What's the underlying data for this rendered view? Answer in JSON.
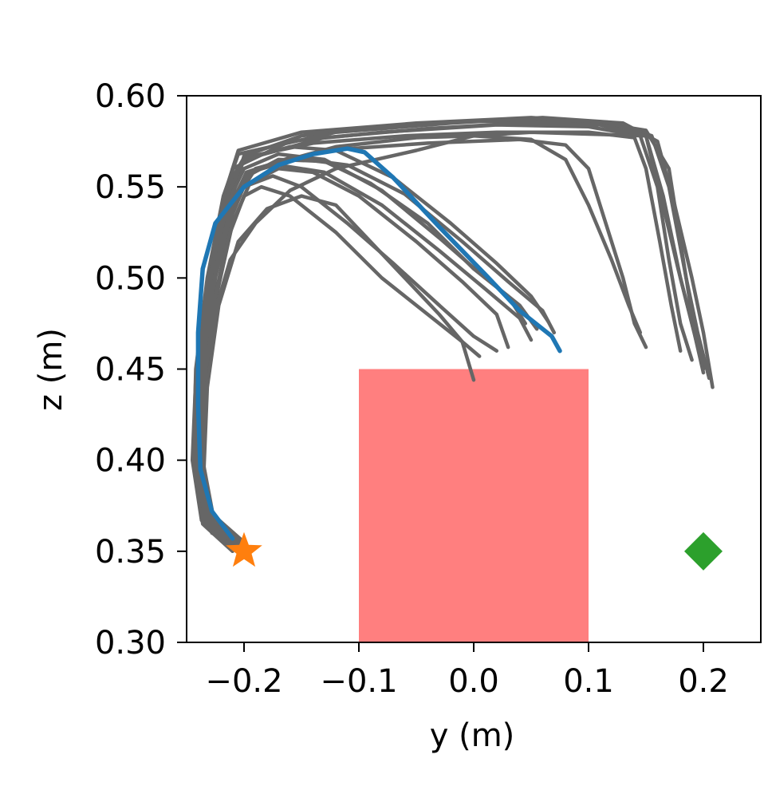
{
  "chart_data": {
    "type": "line",
    "title": "",
    "xlabel": "y (m)",
    "ylabel": "z (m)",
    "xlim": [
      -0.25,
      0.25
    ],
    "ylim": [
      0.3,
      0.6
    ],
    "xticks": [
      -0.2,
      -0.1,
      0.0,
      0.1,
      0.2
    ],
    "xtick_labels": [
      "−0.2",
      "−0.1",
      "0.0",
      "0.1",
      "0.2"
    ],
    "yticks": [
      0.3,
      0.35,
      0.4,
      0.45,
      0.5,
      0.55,
      0.6
    ],
    "ytick_labels": [
      "0.30",
      "0.35",
      "0.40",
      "0.45",
      "0.50",
      "0.55",
      "0.60"
    ],
    "grid": false,
    "obstacle": {
      "y": [
        -0.1,
        0.1
      ],
      "z": [
        0.3,
        0.45
      ],
      "color": "#ff7f7f"
    },
    "start_marker": {
      "y": -0.2,
      "z": 0.35,
      "shape": "star",
      "color": "#ff7f0e"
    },
    "goal_marker": {
      "y": 0.2,
      "z": 0.35,
      "shape": "diamond",
      "color": "#2ca02c"
    },
    "highlight_color": "#1f77b4",
    "sample_color": "#666666",
    "highlighted_trajectory": [
      [
        -0.21,
        0.357
      ],
      [
        -0.228,
        0.372
      ],
      [
        -0.238,
        0.395
      ],
      [
        -0.24,
        0.43
      ],
      [
        -0.24,
        0.47
      ],
      [
        -0.236,
        0.505
      ],
      [
        -0.225,
        0.53
      ],
      [
        -0.2,
        0.55
      ],
      [
        -0.17,
        0.562
      ],
      [
        -0.14,
        0.568
      ],
      [
        -0.11,
        0.571
      ],
      [
        -0.095,
        0.569
      ],
      [
        -0.07,
        0.555
      ],
      [
        -0.03,
        0.528
      ],
      [
        0.01,
        0.502
      ],
      [
        0.04,
        0.482
      ],
      [
        0.068,
        0.468
      ],
      [
        0.075,
        0.46
      ]
    ],
    "sample_trajectories": [
      [
        [
          -0.205,
          0.351
        ],
        [
          -0.23,
          0.362
        ],
        [
          -0.24,
          0.39
        ],
        [
          -0.236,
          0.44
        ],
        [
          -0.225,
          0.5
        ],
        [
          -0.21,
          0.545
        ],
        [
          -0.2,
          0.567
        ],
        [
          -0.15,
          0.578
        ],
        [
          -0.1,
          0.582
        ],
        [
          0,
          0.586
        ],
        [
          0.1,
          0.586
        ],
        [
          0.15,
          0.581
        ],
        [
          0.17,
          0.56
        ],
        [
          0.18,
          0.52
        ],
        [
          0.19,
          0.48
        ],
        [
          0.2,
          0.45
        ]
      ],
      [
        [
          -0.21,
          0.352
        ],
        [
          -0.235,
          0.37
        ],
        [
          -0.242,
          0.41
        ],
        [
          -0.238,
          0.46
        ],
        [
          -0.228,
          0.51
        ],
        [
          -0.215,
          0.55
        ],
        [
          -0.205,
          0.57
        ],
        [
          -0.15,
          0.58
        ],
        [
          -0.05,
          0.585
        ],
        [
          0.05,
          0.588
        ],
        [
          0.12,
          0.585
        ],
        [
          0.155,
          0.578
        ],
        [
          0.17,
          0.55
        ],
        [
          0.185,
          0.5
        ],
        [
          0.195,
          0.47
        ],
        [
          0.205,
          0.445
        ]
      ],
      [
        [
          -0.2,
          0.35
        ],
        [
          -0.225,
          0.36
        ],
        [
          -0.235,
          0.385
        ],
        [
          -0.238,
          0.43
        ],
        [
          -0.232,
          0.48
        ],
        [
          -0.22,
          0.53
        ],
        [
          -0.21,
          0.56
        ],
        [
          -0.16,
          0.575
        ],
        [
          -0.08,
          0.58
        ],
        [
          0.02,
          0.584
        ],
        [
          0.1,
          0.583
        ],
        [
          0.145,
          0.578
        ],
        [
          0.16,
          0.55
        ],
        [
          0.17,
          0.51
        ],
        [
          0.18,
          0.475
        ],
        [
          0.19,
          0.455
        ]
      ],
      [
        [
          -0.205,
          0.355
        ],
        [
          -0.232,
          0.368
        ],
        [
          -0.24,
          0.4
        ],
        [
          -0.238,
          0.45
        ],
        [
          -0.228,
          0.505
        ],
        [
          -0.215,
          0.55
        ],
        [
          -0.2,
          0.566
        ],
        [
          -0.14,
          0.574
        ],
        [
          -0.06,
          0.578
        ],
        [
          0.02,
          0.58
        ],
        [
          0.1,
          0.58
        ],
        [
          0.14,
          0.577
        ],
        [
          0.15,
          0.56
        ],
        [
          0.162,
          0.52
        ],
        [
          0.172,
          0.485
        ],
        [
          0.18,
          0.46
        ]
      ],
      [
        [
          -0.21,
          0.35
        ],
        [
          -0.236,
          0.365
        ],
        [
          -0.244,
          0.4
        ],
        [
          -0.242,
          0.45
        ],
        [
          -0.232,
          0.5
        ],
        [
          -0.218,
          0.545
        ],
        [
          -0.205,
          0.568
        ],
        [
          -0.12,
          0.58
        ],
        [
          -0.02,
          0.585
        ],
        [
          0.06,
          0.588
        ],
        [
          0.13,
          0.585
        ],
        [
          0.16,
          0.575
        ],
        [
          0.175,
          0.54
        ],
        [
          0.19,
          0.5
        ],
        [
          0.2,
          0.47
        ],
        [
          0.208,
          0.44
        ]
      ],
      [
        [
          -0.205,
          0.353
        ],
        [
          -0.23,
          0.366
        ],
        [
          -0.238,
          0.395
        ],
        [
          -0.236,
          0.445
        ],
        [
          -0.226,
          0.5
        ],
        [
          -0.212,
          0.545
        ],
        [
          -0.2,
          0.565
        ],
        [
          -0.13,
          0.577
        ],
        [
          -0.04,
          0.582
        ],
        [
          0.04,
          0.585
        ],
        [
          0.11,
          0.584
        ],
        [
          0.15,
          0.578
        ],
        [
          0.163,
          0.545
        ],
        [
          0.178,
          0.505
        ],
        [
          0.19,
          0.475
        ],
        [
          0.198,
          0.455
        ]
      ],
      [
        [
          -0.2,
          0.352
        ],
        [
          -0.228,
          0.36
        ],
        [
          -0.236,
          0.39
        ],
        [
          -0.234,
          0.44
        ],
        [
          -0.225,
          0.49
        ],
        [
          -0.21,
          0.535
        ],
        [
          -0.195,
          0.558
        ],
        [
          -0.13,
          0.57
        ],
        [
          -0.04,
          0.574
        ],
        [
          0.04,
          0.576
        ],
        [
          0.08,
          0.573
        ],
        [
          0.1,
          0.56
        ],
        [
          0.115,
          0.53
        ],
        [
          0.13,
          0.5
        ],
        [
          0.14,
          0.475
        ],
        [
          0.15,
          0.462
        ]
      ],
      [
        [
          -0.205,
          0.35
        ],
        [
          -0.232,
          0.365
        ],
        [
          -0.24,
          0.4
        ],
        [
          -0.236,
          0.45
        ],
        [
          -0.225,
          0.5
        ],
        [
          -0.21,
          0.54
        ],
        [
          -0.19,
          0.56
        ],
        [
          -0.12,
          0.572
        ],
        [
          -0.05,
          0.577
        ],
        [
          0.0,
          0.578
        ],
        [
          0.05,
          0.576
        ],
        [
          0.08,
          0.565
        ],
        [
          0.1,
          0.54
        ],
        [
          0.12,
          0.51
        ],
        [
          0.135,
          0.485
        ],
        [
          0.145,
          0.47
        ]
      ],
      [
        [
          -0.2,
          0.353
        ],
        [
          -0.228,
          0.365
        ],
        [
          -0.237,
          0.395
        ],
        [
          -0.234,
          0.44
        ],
        [
          -0.224,
          0.49
        ],
        [
          -0.21,
          0.53
        ],
        [
          -0.195,
          0.552
        ],
        [
          -0.17,
          0.56
        ],
        [
          -0.14,
          0.558
        ],
        [
          -0.1,
          0.545
        ],
        [
          -0.05,
          0.52
        ],
        [
          -0.01,
          0.498
        ],
        [
          0.02,
          0.48
        ],
        [
          0.03,
          0.462
        ]
      ],
      [
        [
          -0.21,
          0.355
        ],
        [
          -0.236,
          0.37
        ],
        [
          -0.244,
          0.405
        ],
        [
          -0.24,
          0.455
        ],
        [
          -0.23,
          0.5
        ],
        [
          -0.215,
          0.535
        ],
        [
          -0.2,
          0.55
        ],
        [
          -0.175,
          0.556
        ],
        [
          -0.15,
          0.55
        ],
        [
          -0.11,
          0.53
        ],
        [
          -0.07,
          0.508
        ],
        [
          -0.03,
          0.485
        ],
        [
          0.0,
          0.468
        ],
        [
          0.02,
          0.46
        ]
      ],
      [
        [
          -0.205,
          0.351
        ],
        [
          -0.23,
          0.364
        ],
        [
          -0.238,
          0.395
        ],
        [
          -0.235,
          0.44
        ],
        [
          -0.225,
          0.49
        ],
        [
          -0.212,
          0.525
        ],
        [
          -0.2,
          0.545
        ],
        [
          -0.185,
          0.55
        ],
        [
          -0.16,
          0.545
        ],
        [
          -0.12,
          0.525
        ],
        [
          -0.08,
          0.5
        ],
        [
          -0.04,
          0.48
        ],
        [
          -0.01,
          0.465
        ],
        [
          0.005,
          0.457
        ]
      ],
      [
        [
          -0.2,
          0.355
        ],
        [
          -0.227,
          0.37
        ],
        [
          -0.236,
          0.4
        ],
        [
          -0.234,
          0.445
        ],
        [
          -0.225,
          0.49
        ],
        [
          -0.21,
          0.53
        ],
        [
          -0.195,
          0.552
        ],
        [
          -0.17,
          0.562
        ],
        [
          -0.13,
          0.558
        ],
        [
          -0.08,
          0.54
        ],
        [
          -0.03,
          0.515
        ],
        [
          0.01,
          0.494
        ],
        [
          0.04,
          0.478
        ],
        [
          0.05,
          0.466
        ]
      ],
      [
        [
          -0.208,
          0.352
        ],
        [
          -0.234,
          0.366
        ],
        [
          -0.242,
          0.4
        ],
        [
          -0.238,
          0.45
        ],
        [
          -0.228,
          0.5
        ],
        [
          -0.215,
          0.54
        ],
        [
          -0.2,
          0.56
        ],
        [
          -0.17,
          0.568
        ],
        [
          -0.13,
          0.565
        ],
        [
          -0.08,
          0.548
        ],
        [
          -0.03,
          0.522
        ],
        [
          0.01,
          0.5
        ],
        [
          0.04,
          0.485
        ],
        [
          0.055,
          0.472
        ]
      ],
      [
        [
          -0.205,
          0.355
        ],
        [
          -0.232,
          0.368
        ],
        [
          -0.24,
          0.402
        ],
        [
          -0.236,
          0.45
        ],
        [
          -0.226,
          0.5
        ],
        [
          -0.212,
          0.538
        ],
        [
          -0.198,
          0.558
        ],
        [
          -0.16,
          0.566
        ],
        [
          -0.11,
          0.562
        ],
        [
          -0.06,
          0.546
        ],
        [
          -0.01,
          0.52
        ],
        [
          0.03,
          0.498
        ],
        [
          0.06,
          0.482
        ],
        [
          0.07,
          0.47
        ]
      ],
      [
        [
          -0.2,
          0.352
        ],
        [
          -0.226,
          0.364
        ],
        [
          -0.235,
          0.394
        ],
        [
          -0.232,
          0.44
        ],
        [
          -0.222,
          0.485
        ],
        [
          -0.205,
          0.52
        ],
        [
          -0.18,
          0.538
        ],
        [
          -0.15,
          0.545
        ],
        [
          -0.12,
          0.54
        ],
        [
          -0.09,
          0.52
        ],
        [
          -0.06,
          0.5
        ],
        [
          -0.03,
          0.48
        ],
        [
          -0.01,
          0.465
        ],
        [
          0.0,
          0.444
        ]
      ],
      [
        [
          -0.21,
          0.352
        ],
        [
          -0.237,
          0.367
        ],
        [
          -0.245,
          0.4
        ],
        [
          -0.242,
          0.445
        ],
        [
          -0.232,
          0.495
        ],
        [
          -0.218,
          0.532
        ],
        [
          -0.2,
          0.555
        ],
        [
          -0.17,
          0.565
        ],
        [
          -0.13,
          0.564
        ],
        [
          -0.09,
          0.552
        ],
        [
          -0.04,
          0.53
        ],
        [
          0.0,
          0.505
        ],
        [
          0.03,
          0.49
        ],
        [
          0.045,
          0.475
        ]
      ],
      [
        [
          -0.205,
          0.356
        ],
        [
          -0.23,
          0.37
        ],
        [
          -0.24,
          0.405
        ],
        [
          -0.238,
          0.455
        ],
        [
          -0.228,
          0.505
        ],
        [
          -0.215,
          0.545
        ],
        [
          -0.2,
          0.565
        ],
        [
          -0.16,
          0.572
        ],
        [
          -0.12,
          0.57
        ],
        [
          -0.07,
          0.555
        ],
        [
          -0.02,
          0.53
        ],
        [
          0.02,
          0.508
        ],
        [
          0.05,
          0.49
        ],
        [
          0.065,
          0.476
        ]
      ],
      [
        [
          -0.205,
          0.352
        ],
        [
          -0.23,
          0.365
        ],
        [
          -0.238,
          0.4
        ],
        [
          -0.236,
          0.44
        ],
        [
          -0.226,
          0.48
        ],
        [
          -0.212,
          0.51
        ],
        [
          -0.19,
          0.53
        ],
        [
          -0.16,
          0.548
        ],
        [
          -0.12,
          0.56
        ],
        [
          -0.05,
          0.57
        ],
        [
          0.0,
          0.578
        ],
        [
          0.05,
          0.58
        ],
        [
          0.1,
          0.579
        ],
        [
          0.15,
          0.578
        ],
        [
          0.165,
          0.545
        ],
        [
          0.18,
          0.5
        ],
        [
          0.192,
          0.47
        ],
        [
          0.2,
          0.448
        ]
      ]
    ]
  }
}
